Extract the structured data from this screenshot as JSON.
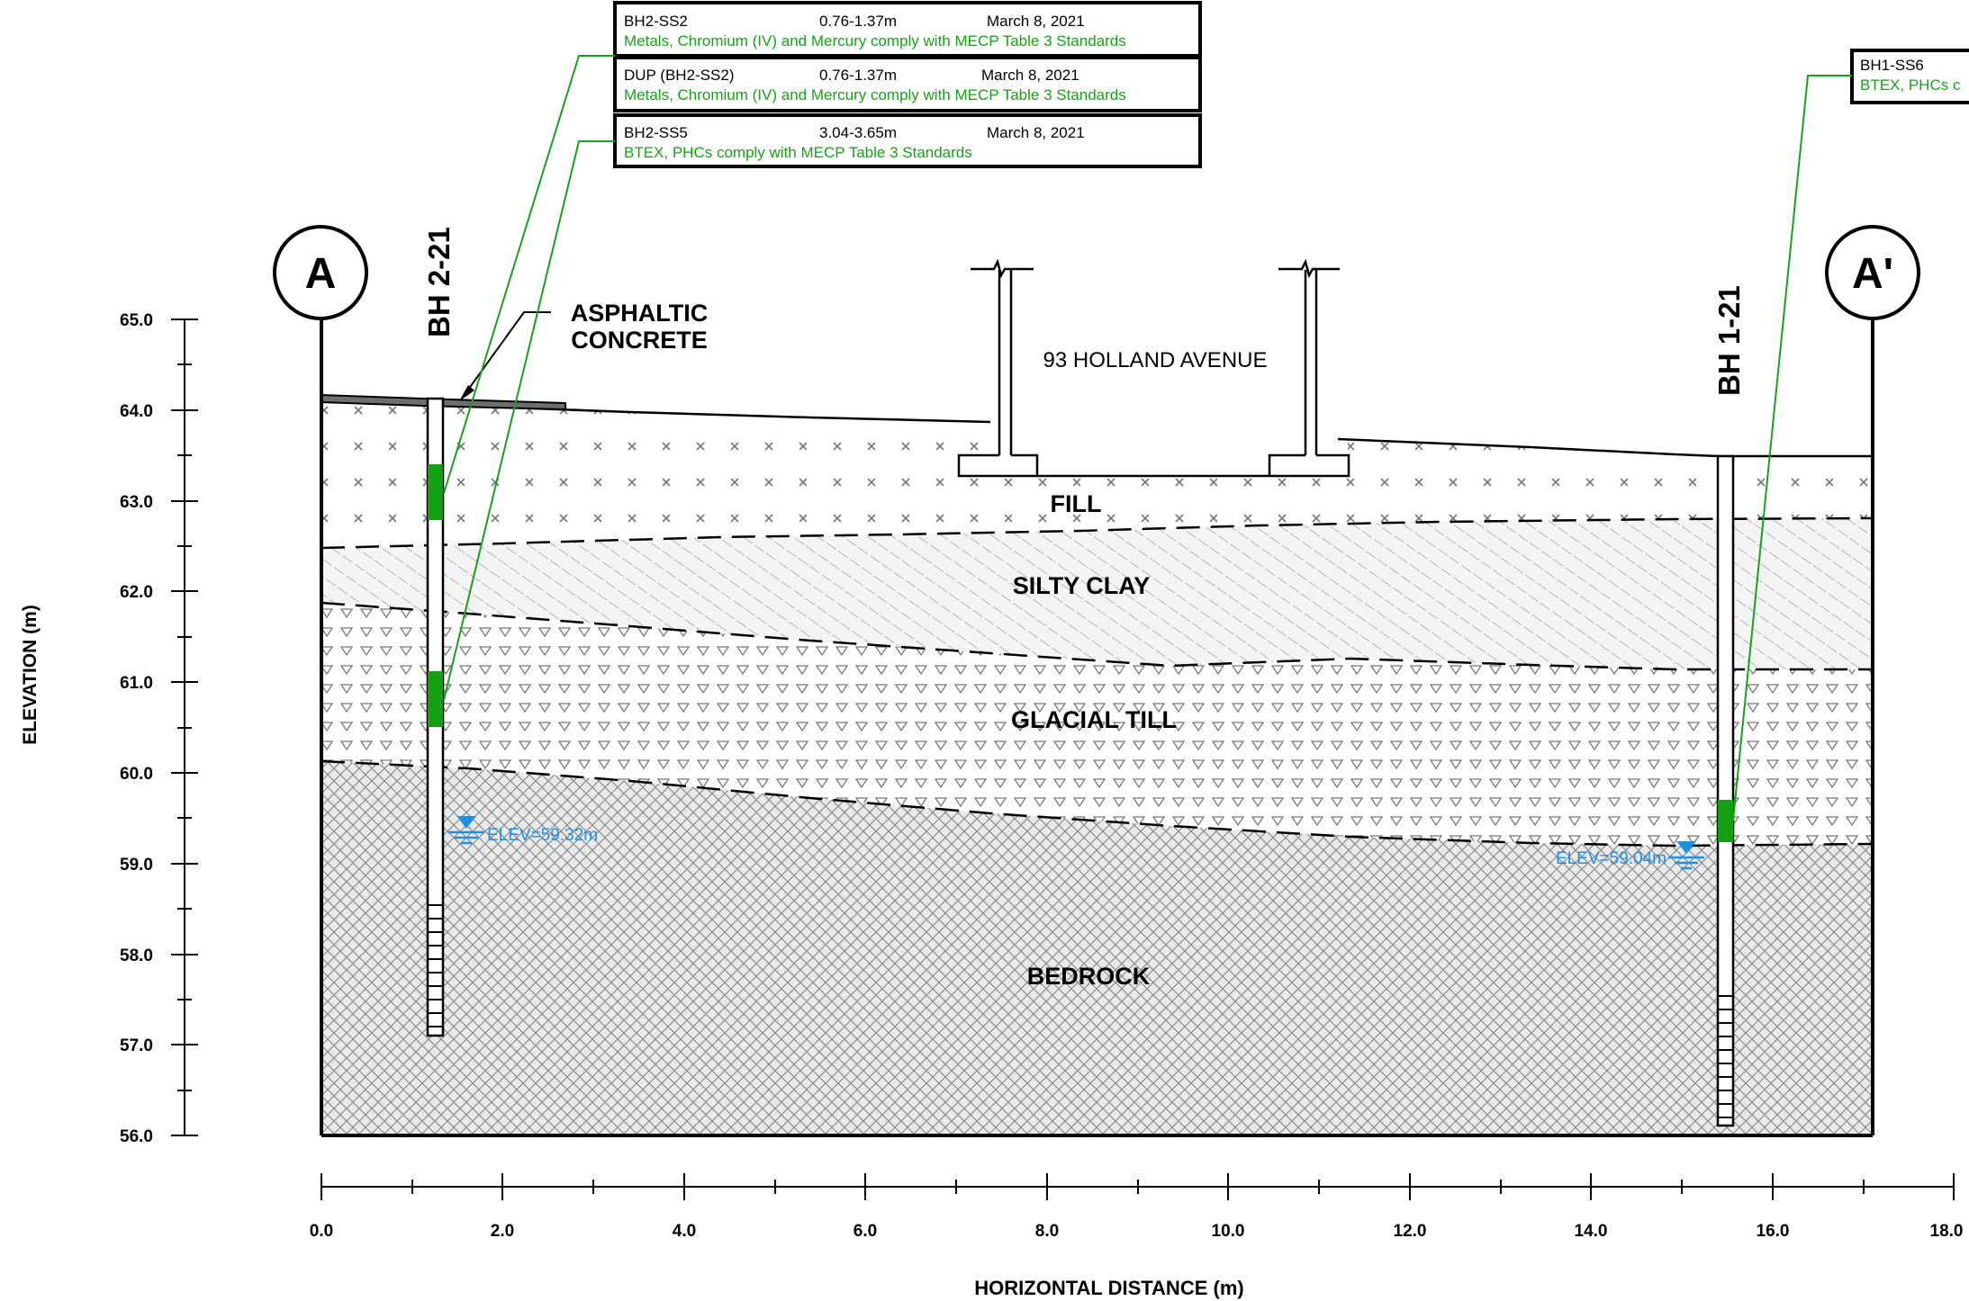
{
  "sample_boxes": [
    {
      "sample": "BH2-SS2",
      "depth": "0.76-1.37m",
      "date": "March 8, 2021",
      "result": "Metals, Chromium (IV) and Mercury comply with MECP Table 3 Standards"
    },
    {
      "sample": "DUP (BH2-SS2)",
      "depth": "0.76-1.37m",
      "date": "March 8, 2021",
      "result": "Metals, Chromium (IV) and Mercury comply with MECP Table 3 Standards"
    },
    {
      "sample": "BH2-SS5",
      "depth": "3.04-3.65m",
      "date": "March 8, 2021",
      "result": "BTEX, PHCs comply with MECP Table 3 Standards"
    },
    {
      "sample": "BH1-SS6",
      "depth": "",
      "date": "",
      "result": "BTEX, PHCs c"
    }
  ],
  "section_markers": {
    "left": "A",
    "right": "A'"
  },
  "boreholes": [
    {
      "name": "BH 2-21",
      "water_level": "ELEV=59.32m"
    },
    {
      "name": "BH 1-21",
      "water_level": "ELEV=59.04m"
    }
  ],
  "annotations": {
    "asphalt_line1": "ASPHALTIC",
    "asphalt_line2": "CONCRETE",
    "building": "93 HOLLAND AVENUE"
  },
  "layers": {
    "fill": "FILL",
    "silty_clay": "SILTY CLAY",
    "glacial_till": "GLACIAL TILL",
    "bedrock": "BEDROCK"
  },
  "axes": {
    "y_label": "ELEVATION (m)",
    "x_label": "HORIZONTAL DISTANCE (m)",
    "y_ticks": [
      "65.0",
      "64.0",
      "63.0",
      "62.0",
      "61.0",
      "60.0",
      "59.0",
      "58.0",
      "57.0",
      "56.0"
    ],
    "x_ticks": [
      "0.0",
      "2.0",
      "4.0",
      "6.0",
      "8.0",
      "10.0",
      "12.0",
      "14.0",
      "16.0",
      "18.0"
    ]
  },
  "colors": {
    "sample_green": "#1aa01a",
    "water_blue": "#1e90e6",
    "screen_green": "#12a012"
  }
}
